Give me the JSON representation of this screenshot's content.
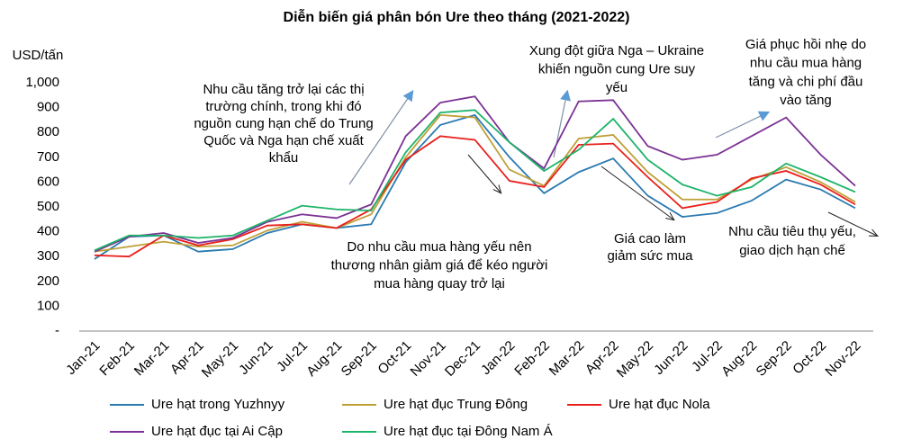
{
  "chart_data": {
    "type": "line",
    "title": "Diễn biến giá phân bón Ure theo tháng (2021-2022)",
    "y_label": "USD/tấn",
    "categories": [
      "Jan-21",
      "Feb-21",
      "Mar-21",
      "Apr-21",
      "May-21",
      "Jun-21",
      "Jul-21",
      "Aug-21",
      "Sep-21",
      "Oct-21",
      "Nov-21",
      "Dec-21",
      "Jan-22",
      "Feb-22",
      "Mar-22",
      "Apr-22",
      "May-22",
      "Jun-22",
      "Jul-22",
      "Aug-22",
      "Sep-22",
      "Oct-22",
      "Nov-22"
    ],
    "series": [
      {
        "name": "Ure hạt trong Yuzhnyy",
        "color": "#2a7ab0",
        "values": [
          290,
          380,
          385,
          320,
          330,
          395,
          430,
          415,
          430,
          680,
          830,
          870,
          700,
          555,
          640,
          695,
          545,
          460,
          475,
          525,
          610,
          570,
          495
        ]
      },
      {
        "name": "Ure hạt đục Trung Đông",
        "color": "#bfa037",
        "values": [
          320,
          340,
          360,
          340,
          345,
          405,
          440,
          415,
          470,
          700,
          870,
          860,
          650,
          585,
          775,
          790,
          640,
          530,
          530,
          610,
          660,
          600,
          520
        ]
      },
      {
        "name": "Ure hạt đục Nola",
        "color": "#e8201c",
        "values": [
          305,
          300,
          385,
          345,
          370,
          425,
          430,
          415,
          490,
          690,
          785,
          770,
          605,
          580,
          750,
          755,
          620,
          495,
          520,
          615,
          645,
          590,
          510
        ]
      },
      {
        "name": "Ure hạt đục tại Ai Cập",
        "color": "#7b3294",
        "values": [
          320,
          380,
          395,
          355,
          375,
          440,
          470,
          455,
          510,
          785,
          920,
          945,
          760,
          655,
          925,
          930,
          745,
          690,
          710,
          785,
          860,
          710,
          585
        ]
      },
      {
        "name": "Ure hạt đục tại Đông Nam Á",
        "color": "#1db36a",
        "values": [
          325,
          385,
          385,
          375,
          385,
          445,
          505,
          490,
          485,
          720,
          880,
          890,
          760,
          645,
          730,
          855,
          690,
          590,
          545,
          580,
          675,
          620,
          560
        ]
      }
    ],
    "ylim": [
      0,
      1000
    ],
    "yticks": [
      {
        "value": 0,
        "label": "-"
      },
      100,
      200,
      300,
      400,
      500,
      600,
      700,
      800,
      900,
      {
        "value": 1000,
        "label": "1,000"
      }
    ],
    "annotations": [
      [
        "Nhu cầu tăng trở lại các thị",
        "trường chính, trong khi đó",
        "nguồn cung hạn chế do Trung",
        "Quốc và Nga hạn chế xuất",
        "khẩu"
      ],
      [
        "Do nhu cầu mua hàng yếu nên",
        "thương nhân giảm giá để kéo người",
        "mua hàng quay trở lại"
      ],
      [
        "Xung đột giữa Nga – Ukraine",
        "khiến nguồn cung Ure suy",
        "yếu"
      ],
      [
        "Giá cao làm",
        "giảm sức mua"
      ],
      [
        "Giá phục hồi nhẹ do",
        "nhu cầu mua hàng",
        "tăng và chi phí đầu",
        "vào tăng"
      ],
      [
        "Nhu cầu tiêu thụ yếu,",
        "giao dịch hạn chế"
      ]
    ]
  }
}
